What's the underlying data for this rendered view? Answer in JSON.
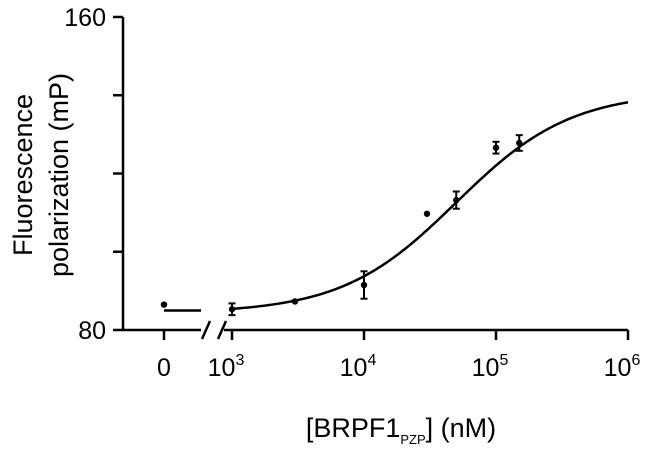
{
  "chart_data": {
    "type": "scatter",
    "ylabel_lines": [
      "Fluorescence",
      "polarization (mP)"
    ],
    "xlabel": {
      "prefix": "[BRPF1",
      "subscript": "PZP",
      "suffix": "] (nM)"
    },
    "ylim": [
      80,
      160
    ],
    "y_ticks": [
      80,
      100,
      120,
      140,
      160
    ],
    "y_tick_labels": [
      "80",
      "160"
    ],
    "x_scale": "log",
    "x_break": true,
    "xlim_log": [
      1000,
      1000000
    ],
    "x_ticks": [
      {
        "base": "10",
        "exp": "3",
        "value": 1000
      },
      {
        "base": "10",
        "exp": "4",
        "value": 10000
      },
      {
        "base": "10",
        "exp": "5",
        "value": 100000
      },
      {
        "base": "10",
        "exp": "6",
        "value": 1000000
      }
    ],
    "zero_segment": {
      "label": "0",
      "x": 0,
      "y": 86.5,
      "fit_level": 85.0
    },
    "points": [
      {
        "x": 1000,
        "y": 85.3,
        "err": 1.5
      },
      {
        "x": 3000,
        "y": 87.3,
        "err": 0
      },
      {
        "x": 10000,
        "y": 91.5,
        "err": 3.5
      },
      {
        "x": 30000,
        "y": 109.7,
        "err": 0
      },
      {
        "x": 50000,
        "y": 113.2,
        "err": 2.2
      },
      {
        "x": 100000,
        "y": 126.6,
        "err": 1.5
      },
      {
        "x": 150000,
        "y": 127.8,
        "err": 2.0
      }
    ],
    "fit_curve": {
      "type": "sigmoid-log",
      "bottom": 84.3,
      "top": 140.9,
      "ec50": 50000,
      "hill": 1.0
    },
    "grid": false,
    "legend": "none"
  }
}
